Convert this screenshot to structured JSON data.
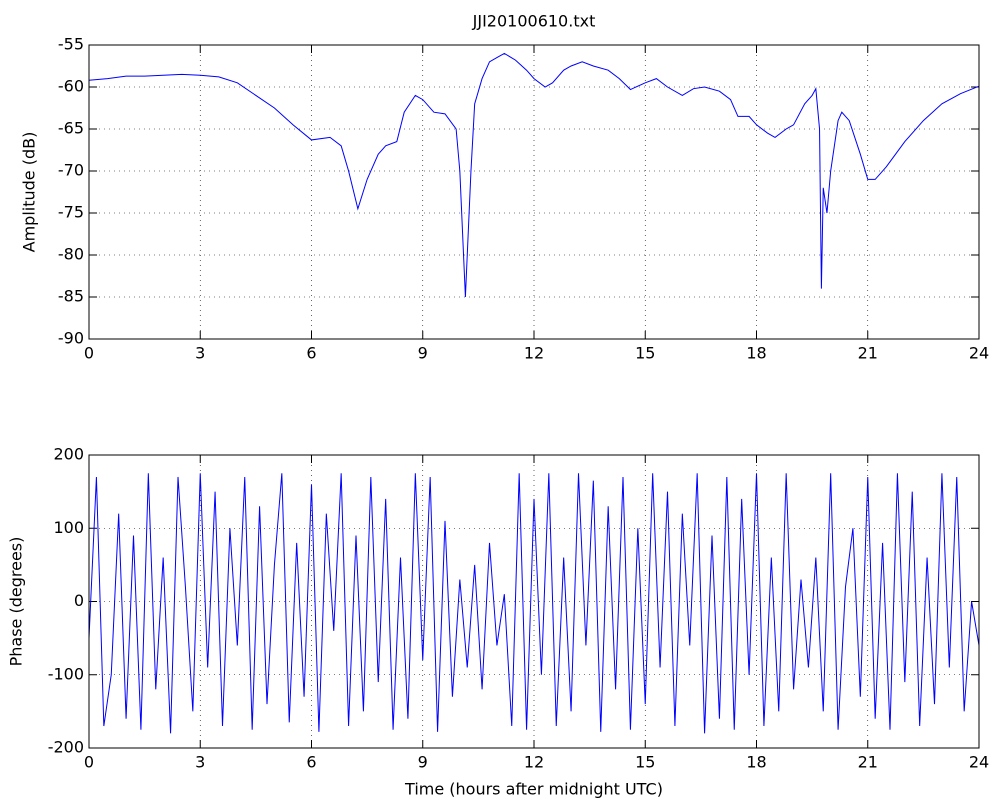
{
  "chart_data": [
    {
      "type": "line",
      "title": "JJI20100610.txt",
      "ylabel": "Amplitude (dB)",
      "color": "#0000ff",
      "grid": true,
      "x": [
        0,
        0.5,
        1,
        1.5,
        2,
        2.5,
        3,
        3.5,
        4,
        4.5,
        5,
        5.5,
        6,
        6.5,
        6.8,
        7,
        7.25,
        7.5,
        7.8,
        8,
        8.3,
        8.5,
        8.8,
        9,
        9.3,
        9.6,
        9.9,
        10,
        10.1,
        10.15,
        10.2,
        10.3,
        10.4,
        10.6,
        10.8,
        11,
        11.2,
        11.5,
        11.8,
        12,
        12.3,
        12.5,
        12.8,
        13,
        13.3,
        13.6,
        14,
        14.3,
        14.6,
        15,
        15.3,
        15.6,
        16,
        16.3,
        16.6,
        17,
        17.3,
        17.5,
        17.8,
        18,
        18.3,
        18.5,
        18.8,
        19,
        19.3,
        19.5,
        19.6,
        19.7,
        19.75,
        19.8,
        19.9,
        20,
        20.2,
        20.3,
        20.5,
        20.8,
        21,
        21.2,
        21.5,
        22,
        22.5,
        23,
        23.5,
        24
      ],
      "values": [
        -59.2,
        -59,
        -58.7,
        -58.7,
        -58.6,
        -58.5,
        -58.6,
        -58.8,
        -59.5,
        -61,
        -62.5,
        -64.5,
        -66.3,
        -66,
        -67,
        -70,
        -74.5,
        -71,
        -68,
        -67,
        -66.5,
        -63,
        -61,
        -61.5,
        -63,
        -63.2,
        -65,
        -70,
        -80,
        -85,
        -80,
        -70,
        -62,
        -59,
        -57,
        -56.5,
        -56,
        -56.8,
        -58,
        -59,
        -60,
        -59.5,
        -58,
        -57.5,
        -57,
        -57.5,
        -58,
        -59,
        -60.3,
        -59.5,
        -59,
        -60,
        -61,
        -60.2,
        -60,
        -60.5,
        -61.5,
        -63.5,
        -63.5,
        -64.5,
        -65.5,
        -66,
        -65,
        -64.5,
        -62,
        -61,
        -60.2,
        -65,
        -84,
        -72,
        -75,
        -70,
        -64,
        -63,
        -64,
        -68,
        -71,
        -71,
        -69.5,
        -66.5,
        -64,
        -62,
        -60.8,
        -59.9
      ],
      "xlim": [
        0,
        24
      ],
      "xticks": [
        0,
        3,
        6,
        9,
        12,
        15,
        18,
        21,
        24
      ],
      "ylim": [
        -90,
        -55
      ],
      "yticks": [
        -90,
        -85,
        -80,
        -75,
        -70,
        -65,
        -60,
        -55
      ]
    },
    {
      "type": "line",
      "xlabel": "Time (hours after midnight UTC)",
      "ylabel": "Phase (degrees)",
      "color": "#0000ff",
      "grid": true,
      "x": [
        0,
        0.2,
        0.4,
        0.6,
        0.8,
        1,
        1.2,
        1.4,
        1.6,
        1.8,
        2,
        2.2,
        2.4,
        2.6,
        2.8,
        3,
        3.2,
        3.4,
        3.6,
        3.8,
        4,
        4.2,
        4.4,
        4.6,
        4.8,
        5,
        5.2,
        5.4,
        5.6,
        5.8,
        6,
        6.2,
        6.4,
        6.6,
        6.8,
        7,
        7.2,
        7.4,
        7.6,
        7.8,
        8,
        8.2,
        8.4,
        8.6,
        8.8,
        9,
        9.2,
        9.4,
        9.6,
        9.8,
        10,
        10.2,
        10.4,
        10.6,
        10.8,
        11,
        11.2,
        11.4,
        11.6,
        11.8,
        12,
        12.2,
        12.4,
        12.6,
        12.8,
        13,
        13.2,
        13.4,
        13.6,
        13.8,
        14,
        14.2,
        14.4,
        14.6,
        14.8,
        15,
        15.2,
        15.4,
        15.6,
        15.8,
        16,
        16.2,
        16.4,
        16.6,
        16.8,
        17,
        17.2,
        17.4,
        17.6,
        17.8,
        18,
        18.2,
        18.4,
        18.6,
        18.8,
        19,
        19.2,
        19.4,
        19.6,
        19.8,
        20,
        20.2,
        20.4,
        20.6,
        20.8,
        21,
        21.2,
        21.4,
        21.6,
        21.8,
        22,
        22.2,
        22.4,
        22.6,
        22.8,
        23,
        23.2,
        23.4,
        23.6,
        23.8,
        24
      ],
      "values": [
        -50,
        170,
        -170,
        -100,
        120,
        -160,
        90,
        -175,
        175,
        -120,
        60,
        -180,
        170,
        20,
        -150,
        175,
        -90,
        150,
        -170,
        100,
        -60,
        170,
        -175,
        130,
        -140,
        50,
        175,
        -165,
        80,
        -130,
        160,
        -178,
        120,
        -40,
        175,
        -170,
        90,
        -150,
        170,
        -110,
        140,
        -175,
        60,
        -160,
        175,
        -80,
        170,
        -178,
        110,
        -130,
        30,
        -90,
        50,
        -120,
        80,
        -60,
        10,
        -170,
        175,
        -175,
        140,
        -100,
        175,
        -170,
        60,
        -150,
        175,
        -60,
        165,
        -178,
        130,
        -120,
        170,
        -175,
        100,
        -140,
        175,
        -90,
        150,
        -170,
        120,
        -60,
        175,
        -180,
        90,
        -160,
        170,
        -175,
        140,
        -100,
        175,
        -170,
        60,
        -150,
        175,
        -120,
        30,
        -90,
        60,
        -150,
        175,
        -175,
        20,
        100,
        -130,
        170,
        -160,
        80,
        -175,
        175,
        -110,
        150,
        -170,
        60,
        -140,
        175,
        -90,
        170,
        -150,
        0,
        -60
      ],
      "xlim": [
        0,
        24
      ],
      "xticks": [
        0,
        3,
        6,
        9,
        12,
        15,
        18,
        21,
        24
      ],
      "ylim": [
        -200,
        200
      ],
      "yticks": [
        -200,
        -100,
        0,
        100,
        200
      ]
    }
  ]
}
